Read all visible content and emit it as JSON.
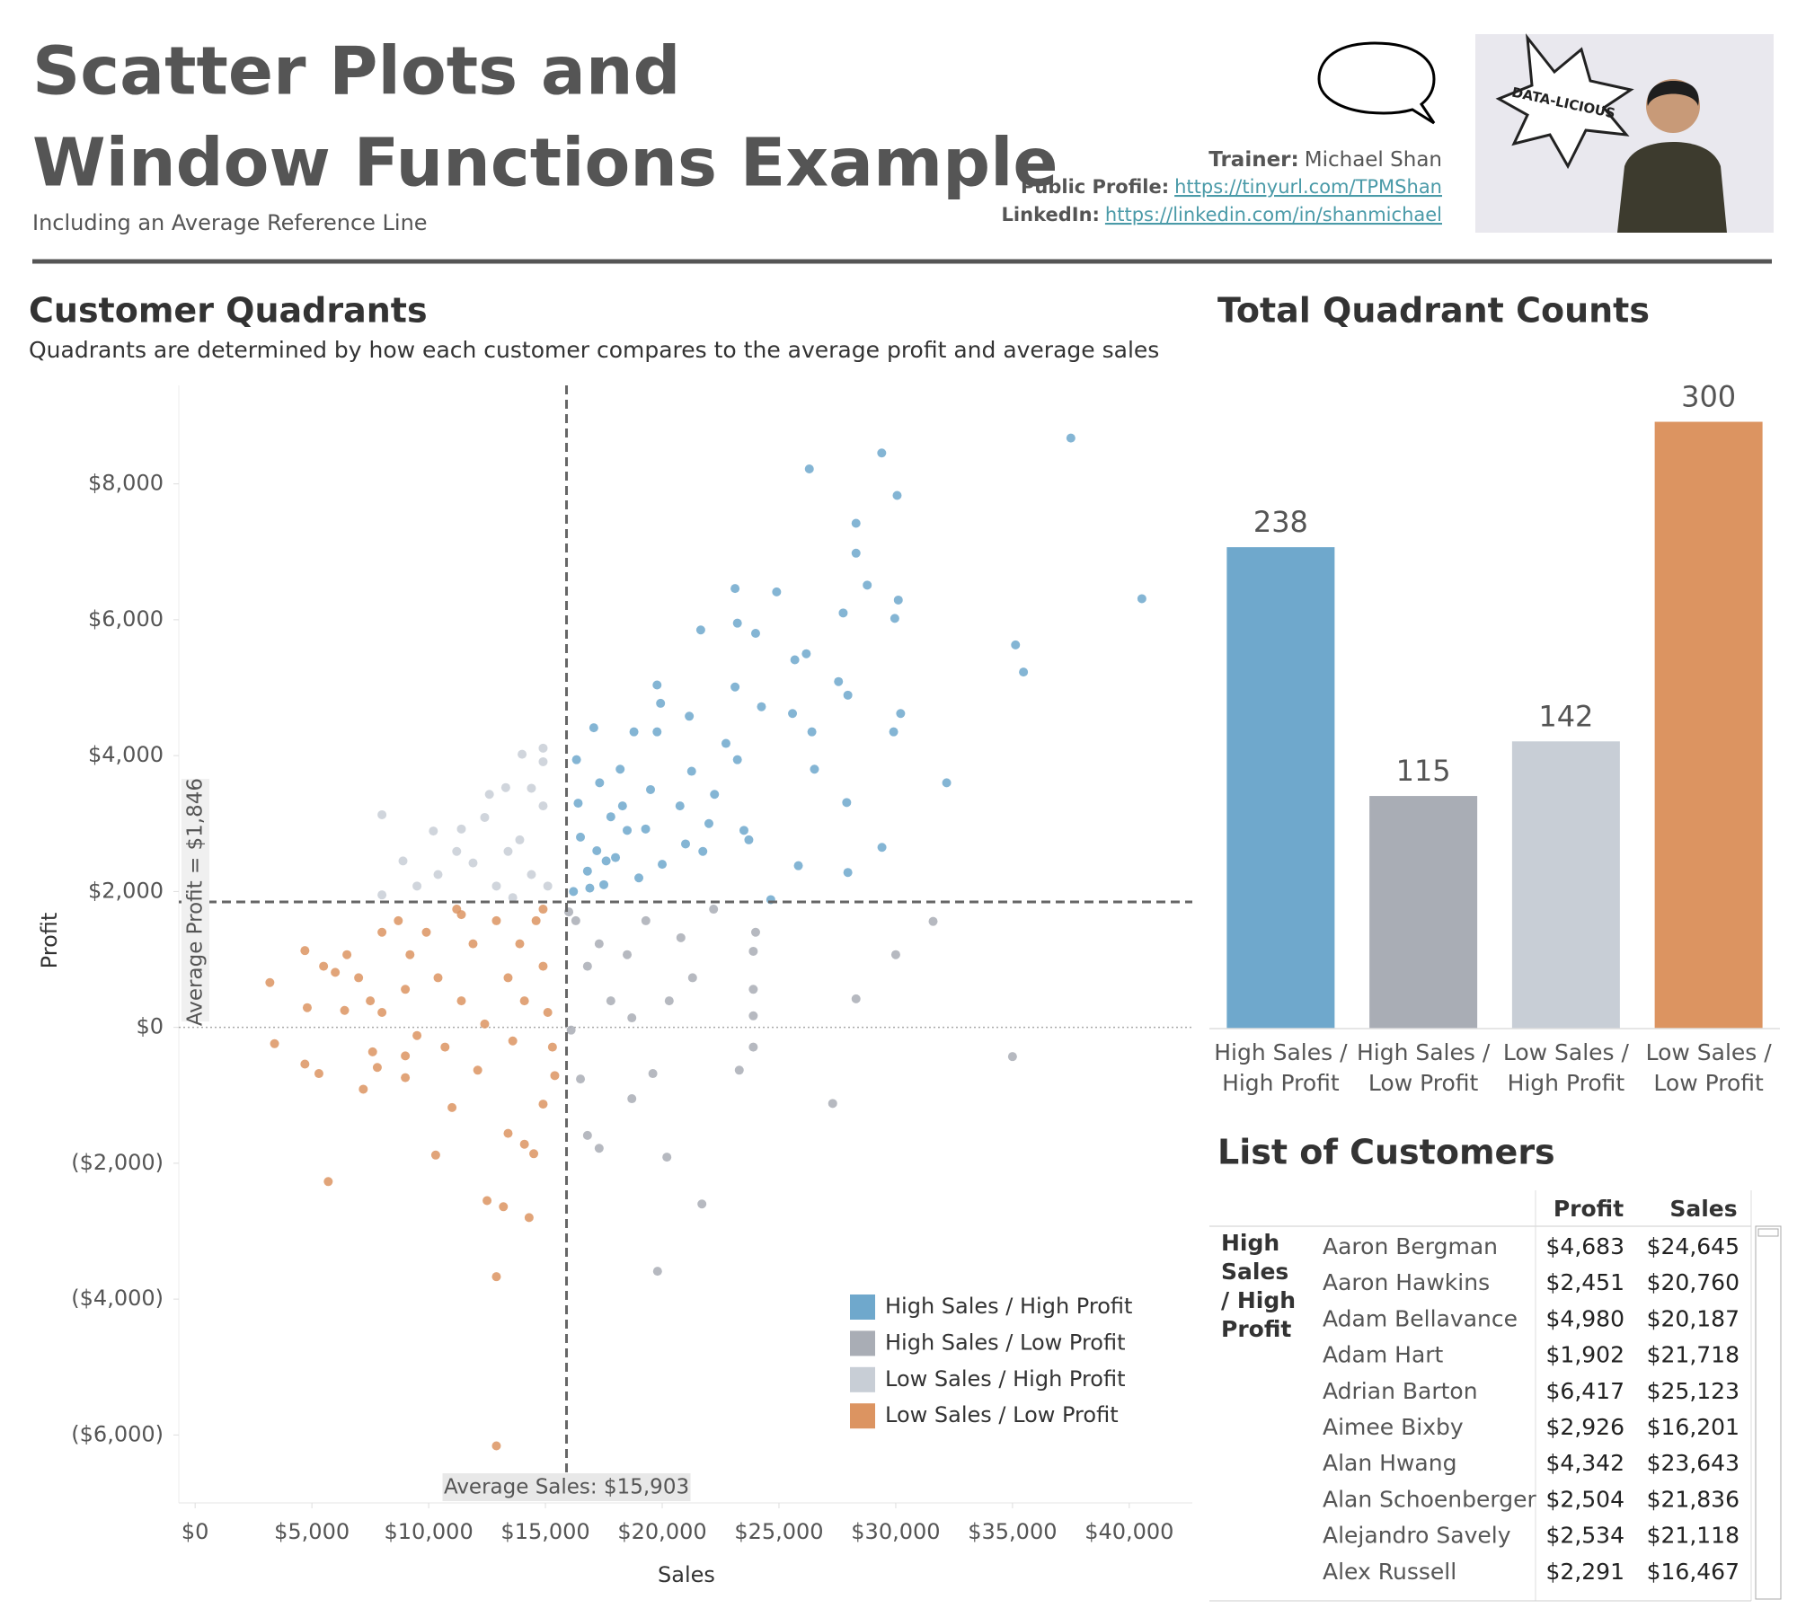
{
  "header": {
    "title_lines": [
      "Scatter Plots and",
      "Window Functions Example"
    ],
    "subtitle": "Including an Average Reference Line",
    "trainer": {
      "label": "Trainer:",
      "value": "Michael Shan"
    },
    "public_profile": {
      "label": "Public Profile:",
      "value": "https://tinyurl.com/TPMShan"
    },
    "linkedin": {
      "label": "LinkedIn:",
      "value": "https://linkedin.com/in/shanmichael"
    },
    "photo_badge": "DATA-LICIOUS"
  },
  "chart_data": [
    {
      "type": "scatter",
      "title": "Customer Quadrants",
      "subtitle": "Quadrants are determined by how each customer compares to the average profit and average sales",
      "x_label": "Sales",
      "y_label": "Profit",
      "xlim": [
        -700,
        42700
      ],
      "ylim": [
        -7000,
        9450
      ],
      "xticks": [
        {
          "value": 0,
          "label": "$0"
        },
        {
          "value": 5000,
          "label": "$5,000"
        },
        {
          "value": 10000,
          "label": "$10,000"
        },
        {
          "value": 15000,
          "label": "$15,000"
        },
        {
          "value": 20000,
          "label": "$20,000"
        },
        {
          "value": 25000,
          "label": "$25,000"
        },
        {
          "value": 30000,
          "label": "$30,000"
        },
        {
          "value": 35000,
          "label": "$35,000"
        },
        {
          "value": 40000,
          "label": "$40,000"
        }
      ],
      "yticks": [
        {
          "value": -6000,
          "label": "($6,000)"
        },
        {
          "value": -4000,
          "label": "($4,000)"
        },
        {
          "value": -2000,
          "label": "($2,000)"
        },
        {
          "value": 0,
          "label": "$0"
        },
        {
          "value": 2000,
          "label": "$2,000"
        },
        {
          "value": 4000,
          "label": "$4,000"
        },
        {
          "value": 6000,
          "label": "$6,000"
        },
        {
          "value": 8000,
          "label": "$8,000"
        }
      ],
      "reference_lines": {
        "x": {
          "value": 15903,
          "label": "Average Sales: $15,903"
        },
        "y": {
          "value": 1846,
          "label": "Average Profit = $1,846"
        }
      },
      "legend": "bottom right",
      "series": [
        {
          "name": "High Sales / High Profit",
          "color": "#6fa8cc",
          "x": [
            37500,
            29400,
            26300,
            30060,
            28300,
            28300,
            28780,
            30110,
            23120,
            24900,
            40540,
            27750,
            29960,
            21650,
            23220,
            24000,
            35130,
            35470,
            26170,
            25680,
            19780,
            27550,
            27950,
            23120,
            24250,
            19930,
            21160,
            30210,
            29910,
            25580,
            26410,
            17070,
            18790,
            19780,
            22730,
            32180,
            27900,
            26520,
            29410,
            27950,
            25830,
            24650,
            23710,
            16330,
            17320,
            18300,
            19290,
            20760,
            21740,
            21260,
            22240,
            23220,
            16500,
            16800,
            17200,
            17500,
            16200,
            18000,
            18500,
            19000,
            17800,
            16400,
            20000,
            21000,
            22000,
            19500,
            18200,
            16900,
            17600,
            23500
          ],
          "y": [
            8675,
            8455,
            8220,
            7830,
            7420,
            6980,
            6510,
            6290,
            6460,
            6410,
            6310,
            6100,
            6020,
            5850,
            5950,
            5800,
            5630,
            5230,
            5500,
            5410,
            5040,
            5090,
            4890,
            5010,
            4720,
            4770,
            4580,
            4620,
            4350,
            4620,
            4350,
            4410,
            4350,
            4350,
            4180,
            3600,
            3310,
            3800,
            2650,
            2280,
            2380,
            1880,
            2760,
            3940,
            3600,
            3260,
            2920,
            3260,
            2590,
            3770,
            3430,
            3940,
            2800,
            2300,
            2600,
            2100,
            2000,
            2500,
            2900,
            2200,
            3100,
            3300,
            2400,
            2700,
            3000,
            3500,
            3800,
            2050,
            2450,
            2900
          ]
        },
        {
          "name": "High Sales / Low Profit",
          "color": "#a9adb5",
          "x": [
            27300,
            35000,
            31600,
            30000,
            28300,
            21700,
            19800,
            20200,
            17300,
            16800,
            18700,
            19600,
            16500,
            23300,
            23900,
            23900,
            23900,
            23900,
            24000,
            21300,
            20300,
            18700,
            17800,
            17300,
            18500,
            19300,
            16300,
            16800,
            16100,
            16000,
            22200,
            20800
          ],
          "y": [
            -1120,
            -430,
            1560,
            1070,
            420,
            -2600,
            -3590,
            -1910,
            -1780,
            -1590,
            -1050,
            -680,
            -760,
            -630,
            -290,
            170,
            560,
            1120,
            1400,
            730,
            390,
            140,
            390,
            1230,
            1070,
            1570,
            1570,
            900,
            -40,
            1700,
            1740,
            1320
          ]
        },
        {
          "name": "Low Sales / High Profit",
          "color": "#c8ced6",
          "x": [
            8000,
            14000,
            14900,
            14900,
            13300,
            14400,
            8900,
            10200,
            11400,
            12400,
            13400,
            8000,
            9500,
            10400,
            11900,
            12900,
            13900,
            14400,
            14900,
            15100,
            12600,
            11200,
            13600
          ],
          "y": [
            3130,
            4020,
            4110,
            3910,
            3530,
            3520,
            2450,
            2890,
            2920,
            3090,
            2590,
            1950,
            2080,
            2250,
            2420,
            2080,
            2760,
            2250,
            3260,
            2080,
            3430,
            2590,
            1910
          ]
        },
        {
          "name": "Low Sales / Low Profit",
          "color": "#dc9461",
          "x": [
            3200,
            3400,
            4700,
            4800,
            4700,
            5300,
            5700,
            6400,
            7200,
            7600,
            7800,
            9000,
            9000,
            10300,
            11000,
            12500,
            13200,
            12900,
            14300,
            12900,
            13400,
            14100,
            14500,
            14900,
            15400,
            6500,
            7000,
            8000,
            8700,
            9200,
            9900,
            10400,
            11200,
            11400,
            11900,
            12400,
            12900,
            13400,
            13900,
            14100,
            14600,
            14900,
            15100,
            15300,
            9500,
            10700,
            8000,
            6000,
            12100,
            13600,
            14900,
            11400,
            9000,
            7500,
            5500
          ],
          "y": [
            660,
            -240,
            1130,
            290,
            -540,
            -680,
            -2270,
            250,
            -910,
            -360,
            -590,
            -740,
            -420,
            -1880,
            -1180,
            -2550,
            -2640,
            -3670,
            -2800,
            -6160,
            -1560,
            -1720,
            -1860,
            -1130,
            -710,
            1070,
            730,
            1400,
            1570,
            1070,
            1400,
            730,
            1740,
            390,
            1230,
            50,
            1570,
            730,
            1230,
            390,
            1570,
            900,
            220,
            -290,
            -120,
            -290,
            220,
            810,
            -630,
            -200,
            1740,
            1660,
            560,
            390,
            900
          ]
        }
      ]
    },
    {
      "type": "bar",
      "title": "Total Quadrant Counts",
      "categories": [
        "High Sales / High Profit",
        "High Sales / Low Profit",
        "Low Sales / High Profit",
        "Low Sales / Low Profit"
      ],
      "values": [
        238,
        115,
        142,
        300
      ],
      "colors": [
        "#6fa8cc",
        "#a9adb5",
        "#c8ced6",
        "#dc9461"
      ],
      "ylim": [
        0,
        318
      ]
    }
  ],
  "table": {
    "title": "List of Customers",
    "columns": [
      "Profit",
      "Sales"
    ],
    "group": "High Sales / High Profit",
    "rows": [
      [
        "Aaron Bergman",
        "$4,683",
        "$24,645"
      ],
      [
        "Aaron Hawkins",
        "$2,451",
        "$20,760"
      ],
      [
        "Adam Bellavance",
        "$4,980",
        "$20,187"
      ],
      [
        "Adam Hart",
        "$1,902",
        "$21,718"
      ],
      [
        "Adrian Barton",
        "$6,417",
        "$25,123"
      ],
      [
        "Aimee Bixby",
        "$2,926",
        "$16,201"
      ],
      [
        "Alan Hwang",
        "$4,342",
        "$23,643"
      ],
      [
        "Alan Schoenberger",
        "$2,504",
        "$21,836"
      ],
      [
        "Alejandro Savely",
        "$2,534",
        "$21,118"
      ],
      [
        "Alex Russell",
        "$2,291",
        "$16,467"
      ]
    ]
  }
}
